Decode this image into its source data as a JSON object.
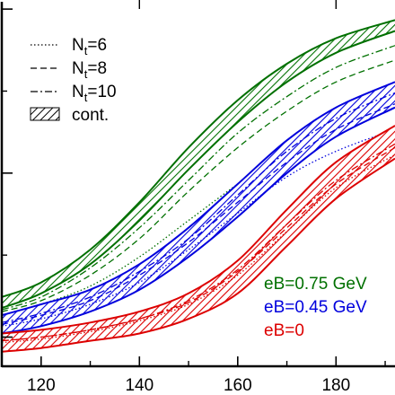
{
  "chart_data": {
    "type": "line",
    "xlim": [
      112,
      192
    ],
    "x_ticks": [
      "120",
      "140",
      "160",
      "180"
    ],
    "x_tick_values": [
      120,
      140,
      160,
      180
    ],
    "ylim": [
      0,
      1
    ],
    "y_ticks": [
      0.08,
      0.53,
      0.98
    ],
    "grid": false,
    "legend_placement": "top-left",
    "legend": [
      {
        "base": "N",
        "sub": "t",
        "rest": "=6",
        "style": "dotted"
      },
      {
        "base": "N",
        "sub": "t",
        "rest": "=8",
        "style": "dashed"
      },
      {
        "base": "N",
        "sub": "t",
        "rest": "=10",
        "style": "dashdot"
      },
      {
        "label": "cont.",
        "style": "hatched"
      }
    ],
    "annotations": [
      {
        "text": "eB=0.75 GeV",
        "color": "#007000"
      },
      {
        "text": "eB=0.45 GeV",
        "color": "#0000dd"
      },
      {
        "text": "eB=0",
        "color": "#dd0000"
      }
    ],
    "series": [
      {
        "color": "#007000",
        "x": [
          112,
          120,
          130,
          140,
          150,
          160,
          170,
          180,
          192
        ],
        "band_upper": [
          0.19,
          0.23,
          0.32,
          0.45,
          0.6,
          0.73,
          0.83,
          0.9,
          0.95
        ],
        "band_lower": [
          0.16,
          0.2,
          0.28,
          0.4,
          0.54,
          0.67,
          0.78,
          0.86,
          0.92
        ],
        "nt6": [
          0.14,
          0.17,
          0.22,
          0.3,
          0.4,
          0.5,
          0.59,
          0.66,
          0.72
        ],
        "nt8": [
          0.15,
          0.18,
          0.25,
          0.35,
          0.48,
          0.6,
          0.7,
          0.78,
          0.84
        ],
        "nt10": [
          0.155,
          0.19,
          0.27,
          0.38,
          0.51,
          0.64,
          0.74,
          0.82,
          0.88
        ]
      },
      {
        "color": "#0000dd",
        "x": [
          112,
          120,
          130,
          140,
          150,
          160,
          170,
          180,
          192
        ],
        "band_upper": [
          0.14,
          0.17,
          0.21,
          0.28,
          0.38,
          0.5,
          0.62,
          0.71,
          0.78
        ],
        "band_lower": [
          0.09,
          0.11,
          0.15,
          0.21,
          0.3,
          0.41,
          0.53,
          0.63,
          0.71
        ],
        "nt6": [
          0.11,
          0.13,
          0.17,
          0.23,
          0.32,
          0.42,
          0.52,
          0.59,
          0.65
        ],
        "nt8": [
          0.115,
          0.14,
          0.18,
          0.25,
          0.34,
          0.45,
          0.56,
          0.65,
          0.72
        ],
        "nt10": [
          0.12,
          0.145,
          0.19,
          0.26,
          0.35,
          0.47,
          0.59,
          0.68,
          0.75
        ]
      },
      {
        "color": "#dd0000",
        "x": [
          112,
          120,
          130,
          140,
          150,
          160,
          170,
          180,
          192
        ],
        "band_upper": [
          0.09,
          0.1,
          0.12,
          0.15,
          0.2,
          0.29,
          0.43,
          0.56,
          0.66
        ],
        "band_lower": [
          0.04,
          0.05,
          0.07,
          0.09,
          0.13,
          0.2,
          0.33,
          0.46,
          0.57
        ],
        "nt6": [
          0.065,
          0.075,
          0.095,
          0.125,
          0.17,
          0.25,
          0.37,
          0.49,
          0.58
        ],
        "nt8": [
          0.07,
          0.08,
          0.1,
          0.13,
          0.175,
          0.26,
          0.38,
          0.5,
          0.6
        ],
        "nt10": [
          0.07,
          0.08,
          0.1,
          0.13,
          0.18,
          0.265,
          0.39,
          0.51,
          0.61
        ]
      }
    ]
  }
}
